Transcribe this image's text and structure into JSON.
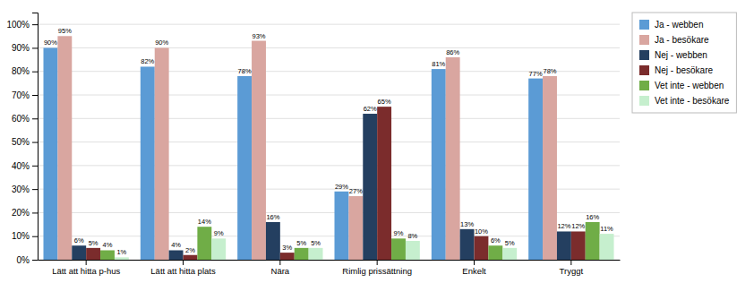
{
  "chart_data": {
    "type": "bar",
    "categories": [
      "Lätt att hitta p-hus",
      "Lätt att hitta plats",
      "Nära",
      "Rimlig prissättning",
      "Enkelt",
      "Tryggt"
    ],
    "series": [
      {
        "name": "Ja - webben",
        "color": "#5B9BD5",
        "values": [
          90,
          82,
          78,
          29,
          81,
          77
        ],
        "value_labels": [
          "90%",
          "82%",
          "78%",
          "29%",
          "81%",
          "77%"
        ]
      },
      {
        "name": "Ja - besökare",
        "color": "#D9A6A0",
        "values": [
          95,
          90,
          93,
          27,
          86,
          78
        ],
        "value_labels": [
          "95%",
          "90%",
          "93%",
          "27%",
          "86%",
          "78%"
        ]
      },
      {
        "name": "Nej - webben",
        "color": "#243F60",
        "values": [
          6,
          4,
          16,
          62,
          13,
          12
        ],
        "value_labels": [
          "6%",
          "4%",
          "16%",
          "62%",
          "13%",
          "12%"
        ]
      },
      {
        "name": "Nej - besökare",
        "color": "#7B2C2C",
        "values": [
          5,
          2,
          3,
          65,
          10,
          12
        ],
        "value_labels": [
          "5%",
          "2%",
          "3%",
          "65%",
          "10%",
          "12%"
        ]
      },
      {
        "name": "Vet inte - webben",
        "color": "#70AD47",
        "values": [
          4,
          14,
          5,
          9,
          6,
          16
        ],
        "value_labels": [
          "4%",
          "14%",
          "5%",
          "9%",
          "6%",
          "16%"
        ]
      },
      {
        "name": "Vet inte - besökare",
        "color": "#C6EFCE",
        "values": [
          1,
          9,
          5,
          8,
          5,
          11
        ],
        "value_labels": [
          "1%",
          "9%",
          "5%",
          "8%",
          "5%",
          "11%"
        ]
      }
    ],
    "ylim": [
      0,
      105
    ],
    "yticks": [
      {
        "value": 0,
        "label": "0%"
      },
      {
        "value": 10,
        "label": "10%"
      },
      {
        "value": 20,
        "label": "20%"
      },
      {
        "value": 30,
        "label": "30%"
      },
      {
        "value": 40,
        "label": "40%"
      },
      {
        "value": 50,
        "label": "50%"
      },
      {
        "value": 60,
        "label": "60%"
      },
      {
        "value": 70,
        "label": "70%"
      },
      {
        "value": 80,
        "label": "80%"
      },
      {
        "value": 90,
        "label": "90%"
      },
      {
        "value": 100,
        "label": "100%"
      }
    ],
    "grid": true,
    "legend": "right",
    "data_labels": true
  }
}
